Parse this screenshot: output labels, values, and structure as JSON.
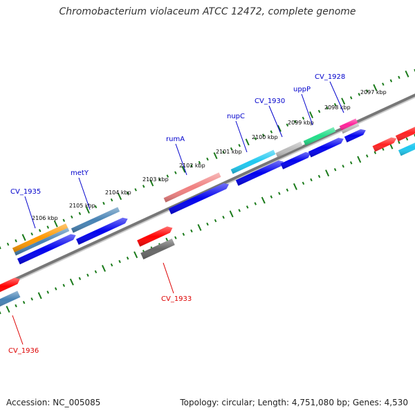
{
  "title": "Chromobacterium violaceum ATCC 12472, complete genome",
  "footer": {
    "accession": "Accession: NC_005085",
    "topology": "Topology: circular; Length: 4,751,080 bp; Genes: 4,530"
  },
  "colors": {
    "outer_track_label": "#0000cc",
    "inner_track_label": "#dd0000",
    "backbone": "#777777",
    "tick": "#1a7a1a",
    "cds": "#0000ee"
  },
  "scale_labels": [
    "2106 kbp",
    "2105 kbp",
    "2104 kbp",
    "2103 kbp",
    "2102 kbp",
    "2101 kbp",
    "2100 kbp",
    "2099 kbp",
    "2098 kbp",
    "2097 kbp"
  ],
  "gene_labels": {
    "outer": [
      "CV_1935",
      "metY",
      "rumA",
      "nupC",
      "CV_1930",
      "uppP",
      "CV_1928"
    ],
    "inner": [
      "CV_1933",
      "CV_1936"
    ]
  },
  "feature_colors": {
    "CV_1935": "#ff9900",
    "CV_1935_b": "#4682b4",
    "metY": "#4682b4",
    "rumA": "#f08080",
    "nupC": "#1ec8f0",
    "CV_1930": "#bbbbbb",
    "uppP": "#22dd88",
    "CV_1928": "#ff2299",
    "CV_1928_b": "#bbbbbb",
    "CV_1933": "#ff0000",
    "CV_1933_b": "#666666",
    "CV_1936": "#ff0000",
    "CV_1936_b": "#4682b4"
  }
}
